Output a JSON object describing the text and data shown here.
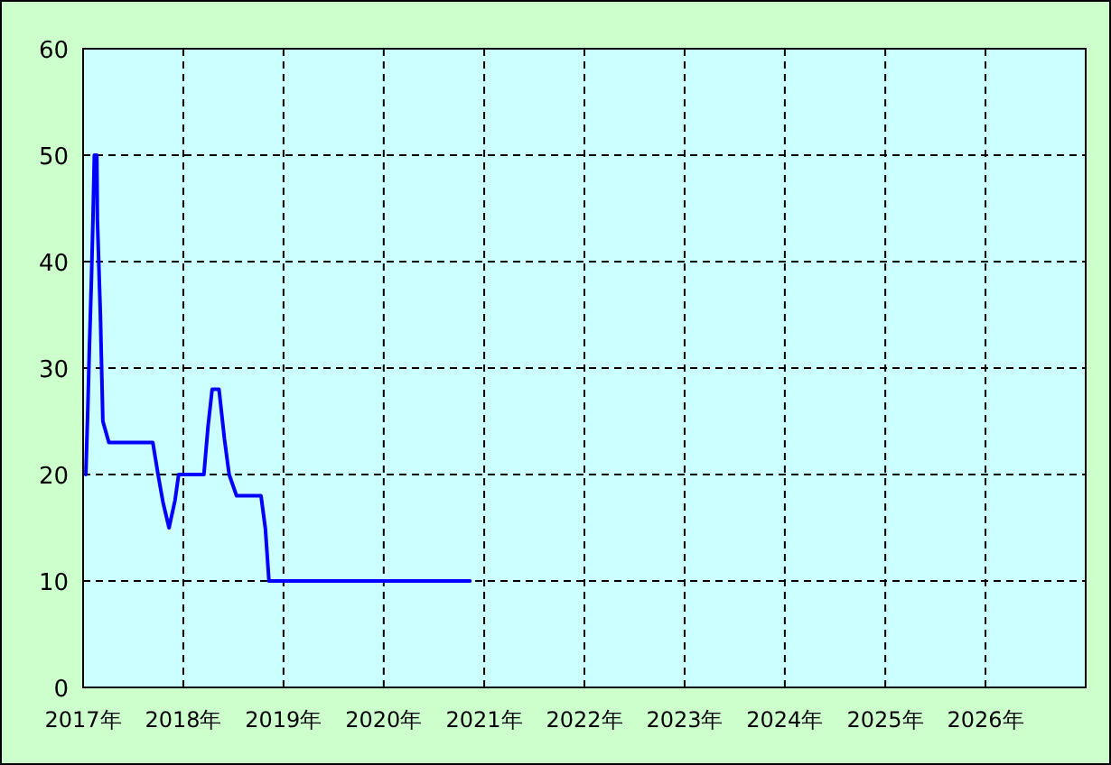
{
  "chart_data": {
    "type": "line",
    "x": [
      "2017-01-11",
      "2017-01-18",
      "2017-01-24",
      "2017-01-31",
      "2017-02-06",
      "2017-02-11",
      "2017-02-20",
      "2017-02-22",
      "2017-03-05",
      "2017-03-14",
      "2017-04-05",
      "2017-09-12",
      "2017-10-01",
      "2017-10-19",
      "2017-11-10",
      "2017-12-02",
      "2017-12-15",
      "2018-03-17",
      "2018-04-01",
      "2018-04-16",
      "2018-05-11",
      "2018-05-31",
      "2018-06-17",
      "2018-07-14",
      "2018-10-11",
      "2018-10-27",
      "2018-11-09",
      "2020-11-10"
    ],
    "series": [
      {
        "color": "#0000ff",
        "values": [
          20,
          26,
          32,
          38,
          44,
          50,
          50,
          44,
          35,
          25,
          23,
          23,
          20,
          17.4,
          15,
          17.6,
          20,
          20,
          24.5,
          28,
          28,
          23.3,
          20,
          18,
          18,
          14.9,
          10,
          10
        ]
      }
    ],
    "xlim": [
      "2017",
      "2027"
    ],
    "xticks": [
      {
        "value": "2017",
        "label": "2017年"
      },
      {
        "value": "2018",
        "label": "2018年"
      },
      {
        "value": "2019",
        "label": "2019年"
      },
      {
        "value": "2020",
        "label": "2020年"
      },
      {
        "value": "2021",
        "label": "2021年"
      },
      {
        "value": "2022",
        "label": "2022年"
      },
      {
        "value": "2023",
        "label": "2023年"
      },
      {
        "value": "2024",
        "label": "2024年"
      },
      {
        "value": "2025",
        "label": "2025年"
      },
      {
        "value": "2026",
        "label": "2026年"
      }
    ],
    "ylim": [
      0,
      60
    ],
    "yticks": [
      0,
      10,
      20,
      30,
      40,
      50,
      60
    ],
    "grid": true,
    "marker": "none",
    "line_style": "solid"
  }
}
